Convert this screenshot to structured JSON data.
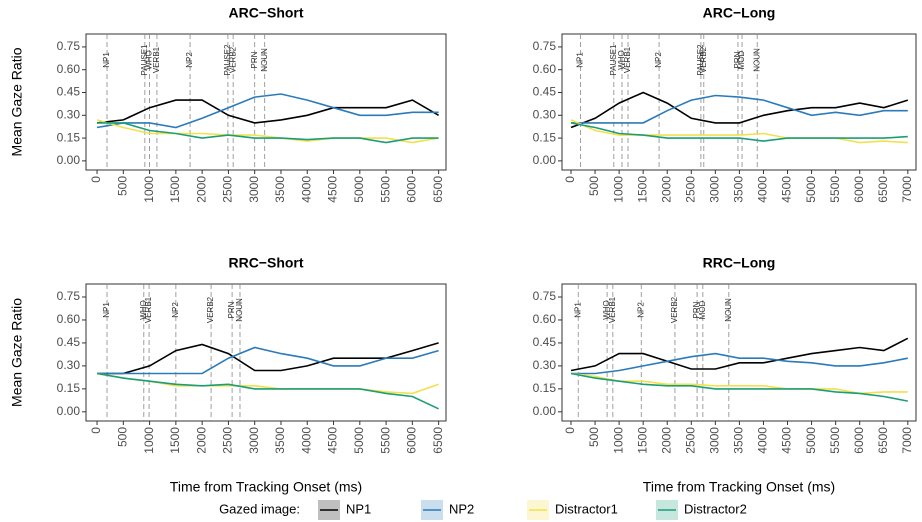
{
  "chart_data": [
    {
      "type": "line",
      "title": "ARC−Short",
      "ylabel": "Mean Gaze Ratio",
      "x": [
        0,
        500,
        1000,
        1500,
        2000,
        2500,
        3000,
        3500,
        4000,
        4500,
        5000,
        5500,
        6000,
        6500
      ],
      "xlim": [
        -210,
        6640
      ],
      "xticks": [
        0,
        500,
        1000,
        1500,
        2000,
        2500,
        3000,
        3500,
        4000,
        4500,
        5000,
        5500,
        6000,
        6500
      ],
      "ylim": [
        -0.06,
        0.835
      ],
      "yticks": [
        {
          "value": 0,
          "label": "0.00"
        },
        {
          "value": 0.15,
          "label": "0.15"
        },
        {
          "value": 0.3,
          "label": "0.30"
        },
        {
          "value": 0.45,
          "label": "0.45"
        },
        {
          "value": 0.6,
          "label": "0.60"
        },
        {
          "value": 0.75,
          "label": "0.75"
        }
      ],
      "events": [
        {
          "label": "NP1",
          "x": 190
        },
        {
          "label": "PAUSE1",
          "x": 910
        },
        {
          "label": "WHO",
          "x": 1000
        },
        {
          "label": "VERB1",
          "x": 1140
        },
        {
          "label": "NP2",
          "x": 1770
        },
        {
          "label": "PAUSE2",
          "x": 2490
        },
        {
          "label": "VERB2",
          "x": 2590
        },
        {
          "label": "PRN",
          "x": 3000
        },
        {
          "label": "NOUN",
          "x": 3190
        }
      ],
      "series": [
        {
          "name": "NP1",
          "color": "#000000",
          "values": [
            0.25,
            0.27,
            0.35,
            0.4,
            0.4,
            0.3,
            0.25,
            0.27,
            0.3,
            0.35,
            0.35,
            0.35,
            0.4,
            0.3
          ]
        },
        {
          "name": "NP2",
          "color": "#2b7bba",
          "values": [
            0.22,
            0.25,
            0.25,
            0.22,
            0.28,
            0.35,
            0.42,
            0.44,
            0.4,
            0.35,
            0.3,
            0.3,
            0.32,
            0.32
          ]
        },
        {
          "name": "Distractor1",
          "color": "#f2e14c",
          "values": [
            0.27,
            0.22,
            0.18,
            0.18,
            0.18,
            0.17,
            0.17,
            0.15,
            0.13,
            0.15,
            0.15,
            0.15,
            0.12,
            0.15
          ]
        },
        {
          "name": "Distractor2",
          "color": "#1b9e77",
          "values": [
            0.25,
            0.25,
            0.2,
            0.18,
            0.15,
            0.17,
            0.15,
            0.15,
            0.14,
            0.15,
            0.15,
            0.12,
            0.15,
            0.15
          ]
        }
      ]
    },
    {
      "type": "line",
      "title": "ARC−Long",
      "x": [
        0,
        500,
        1000,
        1500,
        2000,
        2500,
        3000,
        3500,
        4000,
        4500,
        5000,
        5500,
        6000,
        6500,
        7000
      ],
      "xlim": [
        -187,
        7170
      ],
      "xticks": [
        0,
        500,
        1000,
        1500,
        2000,
        2500,
        3000,
        3500,
        4000,
        4500,
        5000,
        5500,
        6000,
        6500,
        7000
      ],
      "ylim": [
        -0.06,
        0.835
      ],
      "yticks": [
        {
          "value": 0,
          "label": "0.00"
        },
        {
          "value": 0.15,
          "label": "0.15"
        },
        {
          "value": 0.3,
          "label": "0.30"
        },
        {
          "value": 0.45,
          "label": "0.45"
        },
        {
          "value": 0.6,
          "label": "0.60"
        },
        {
          "value": 0.75,
          "label": "0.75"
        }
      ],
      "events": [
        {
          "label": "NP1",
          "x": 200
        },
        {
          "label": "PAUSE1",
          "x": 890
        },
        {
          "label": "WHO",
          "x": 1060
        },
        {
          "label": "VERB1",
          "x": 1185
        },
        {
          "label": "NP2",
          "x": 1830
        },
        {
          "label": "PAUSE2",
          "x": 2700
        },
        {
          "label": "VERB2",
          "x": 2760
        },
        {
          "label": "PRN",
          "x": 3470
        },
        {
          "label": "MOD",
          "x": 3555
        },
        {
          "label": "NOUN",
          "x": 3870
        }
      ],
      "series": [
        {
          "name": "NP1",
          "color": "#000000",
          "values": [
            0.22,
            0.28,
            0.38,
            0.45,
            0.38,
            0.28,
            0.25,
            0.25,
            0.3,
            0.33,
            0.35,
            0.35,
            0.38,
            0.35,
            0.4
          ]
        },
        {
          "name": "NP2",
          "color": "#2b7bba",
          "values": [
            0.25,
            0.25,
            0.25,
            0.25,
            0.33,
            0.4,
            0.43,
            0.42,
            0.4,
            0.35,
            0.3,
            0.32,
            0.3,
            0.33,
            0.33
          ]
        },
        {
          "name": "Distractor1",
          "color": "#f2e14c",
          "values": [
            0.27,
            0.2,
            0.17,
            0.17,
            0.17,
            0.17,
            0.17,
            0.17,
            0.18,
            0.15,
            0.15,
            0.15,
            0.12,
            0.13,
            0.12
          ]
        },
        {
          "name": "Distractor2",
          "color": "#1b9e77",
          "values": [
            0.25,
            0.22,
            0.18,
            0.17,
            0.15,
            0.15,
            0.15,
            0.15,
            0.13,
            0.15,
            0.15,
            0.15,
            0.15,
            0.15,
            0.16
          ]
        }
      ]
    },
    {
      "type": "line",
      "title": "RRC−Short",
      "ylabel": "Mean Gaze Ratio",
      "xlabel": "Time from Tracking Onset (ms)",
      "x": [
        0,
        500,
        1000,
        1500,
        2000,
        2500,
        3000,
        3500,
        4000,
        4500,
        5000,
        5500,
        6000,
        6500
      ],
      "xlim": [
        -210,
        6640
      ],
      "xticks": [
        0,
        500,
        1000,
        1500,
        2000,
        2500,
        3000,
        3500,
        4000,
        4500,
        5000,
        5500,
        6000,
        6500
      ],
      "ylim": [
        -0.06,
        0.835
      ],
      "yticks": [
        {
          "value": 0,
          "label": "0.00"
        },
        {
          "value": 0.15,
          "label": "0.15"
        },
        {
          "value": 0.3,
          "label": "0.30"
        },
        {
          "value": 0.45,
          "label": "0.45"
        },
        {
          "value": 0.6,
          "label": "0.60"
        },
        {
          "value": 0.75,
          "label": "0.75"
        }
      ],
      "events": [
        {
          "label": "NP1",
          "x": 190
        },
        {
          "label": "WHO",
          "x": 890
        },
        {
          "label": "VERB1",
          "x": 990
        },
        {
          "label": "NP2",
          "x": 1500
        },
        {
          "label": "VERB2",
          "x": 2170
        },
        {
          "label": "PRN",
          "x": 2570
        },
        {
          "label": "NOUN",
          "x": 2720
        }
      ],
      "series": [
        {
          "name": "NP1",
          "color": "#000000",
          "values": [
            0.25,
            0.25,
            0.3,
            0.4,
            0.44,
            0.38,
            0.27,
            0.27,
            0.3,
            0.35,
            0.35,
            0.35,
            0.4,
            0.45
          ]
        },
        {
          "name": "NP2",
          "color": "#2b7bba",
          "values": [
            0.25,
            0.25,
            0.25,
            0.25,
            0.25,
            0.35,
            0.42,
            0.38,
            0.35,
            0.3,
            0.3,
            0.35,
            0.35,
            0.4
          ]
        },
        {
          "name": "Distractor1",
          "color": "#f2e14c",
          "values": [
            0.25,
            0.22,
            0.2,
            0.17,
            0.17,
            0.17,
            0.17,
            0.15,
            0.15,
            0.15,
            0.15,
            0.13,
            0.12,
            0.18
          ]
        },
        {
          "name": "Distractor2",
          "color": "#1b9e77",
          "values": [
            0.25,
            0.22,
            0.2,
            0.18,
            0.17,
            0.18,
            0.15,
            0.15,
            0.15,
            0.15,
            0.15,
            0.12,
            0.1,
            0.02
          ]
        }
      ]
    },
    {
      "type": "line",
      "title": "RRC−Long",
      "xlabel": "Time from Tracking Onset (ms)",
      "x": [
        0,
        500,
        1000,
        1500,
        2000,
        2500,
        3000,
        3500,
        4000,
        4500,
        5000,
        5500,
        6000,
        6500,
        7000
      ],
      "xlim": [
        -187,
        7170
      ],
      "xticks": [
        0,
        500,
        1000,
        1500,
        2000,
        2500,
        3000,
        3500,
        4000,
        4500,
        5000,
        5500,
        6000,
        6500,
        7000
      ],
      "ylim": [
        -0.06,
        0.835
      ],
      "yticks": [
        {
          "value": 0,
          "label": "0.00"
        },
        {
          "value": 0.15,
          "label": "0.15"
        },
        {
          "value": 0.3,
          "label": "0.30"
        },
        {
          "value": 0.45,
          "label": "0.45"
        },
        {
          "value": 0.6,
          "label": "0.60"
        },
        {
          "value": 0.75,
          "label": "0.75"
        }
      ],
      "events": [
        {
          "label": "NP1",
          "x": 150
        },
        {
          "label": "WHO",
          "x": 750
        },
        {
          "label": "VERB1",
          "x": 870
        },
        {
          "label": "NP2",
          "x": 1460
        },
        {
          "label": "VERB2",
          "x": 2160
        },
        {
          "label": "PRN",
          "x": 2620
        },
        {
          "label": "MOD",
          "x": 2740
        },
        {
          "label": "NOUN",
          "x": 3280
        }
      ],
      "series": [
        {
          "name": "NP1",
          "color": "#000000",
          "values": [
            0.27,
            0.3,
            0.38,
            0.38,
            0.33,
            0.28,
            0.28,
            0.32,
            0.32,
            0.35,
            0.38,
            0.4,
            0.42,
            0.4,
            0.48
          ]
        },
        {
          "name": "NP2",
          "color": "#2b7bba",
          "values": [
            0.25,
            0.25,
            0.27,
            0.3,
            0.33,
            0.36,
            0.38,
            0.35,
            0.35,
            0.33,
            0.32,
            0.3,
            0.3,
            0.32,
            0.35
          ]
        },
        {
          "name": "Distractor1",
          "color": "#f2e14c",
          "values": [
            0.25,
            0.23,
            0.2,
            0.2,
            0.18,
            0.18,
            0.17,
            0.17,
            0.17,
            0.15,
            0.15,
            0.15,
            0.12,
            0.13,
            0.13
          ]
        },
        {
          "name": "Distractor2",
          "color": "#1b9e77",
          "values": [
            0.25,
            0.22,
            0.2,
            0.18,
            0.17,
            0.17,
            0.15,
            0.15,
            0.15,
            0.15,
            0.15,
            0.13,
            0.12,
            0.1,
            0.07
          ]
        }
      ]
    }
  ],
  "legend_title": "Gazed image:"
}
